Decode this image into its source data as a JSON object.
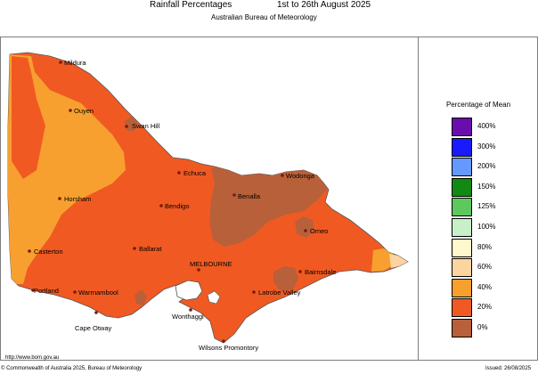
{
  "header": {
    "title": "Rainfall Percentages",
    "period": "1st to 26th August 2025",
    "agency": "Australian Bureau of Meteorology"
  },
  "legend": {
    "title": "Percentage of Mean",
    "items": [
      {
        "label": "400%",
        "color": "#6a0dad"
      },
      {
        "label": "300%",
        "color": "#1a1aff"
      },
      {
        "label": "200%",
        "color": "#6699ff"
      },
      {
        "label": "150%",
        "color": "#108a10"
      },
      {
        "label": "125%",
        "color": "#5dc85d"
      },
      {
        "label": "100%",
        "color": "#c8f0c8"
      },
      {
        "label": "80%",
        "color": "#fff8cc"
      },
      {
        "label": "60%",
        "color": "#fbd4a0"
      },
      {
        "label": "40%",
        "color": "#f7a030"
      },
      {
        "label": "20%",
        "color": "#f05a22"
      },
      {
        "label": "0%",
        "color": "#b8603a"
      }
    ]
  },
  "map": {
    "places": {
      "mildura": "Mildura",
      "ouyen": "Ouyen",
      "swan_hill": "Swan Hill",
      "echuca": "Echuca",
      "wodonga": "Wodonga",
      "benalla": "Benalla",
      "horsham": "Horsham",
      "bendigo": "Bendigo",
      "omeo": "Omeo",
      "casterton": "Casterton",
      "ballarat": "Ballarat",
      "melbourne": "MELBOURNE",
      "bairnsdale": "Bairnsdale",
      "portland": "Portland",
      "warrnambool": "Warrnambool",
      "latrobe_valley": "Latrobe Valley",
      "wonthaggi": "Wonthaggi",
      "cape_otway": "Cape Otway",
      "wilsons_promontory": "Wilsons Promontory"
    }
  },
  "footer": {
    "url": "http://www.bom.gov.au",
    "copyright": "© Commonwealth of Australia 2025, Bureau of Meteorology",
    "issued": "Issued: 26/08/2025"
  }
}
